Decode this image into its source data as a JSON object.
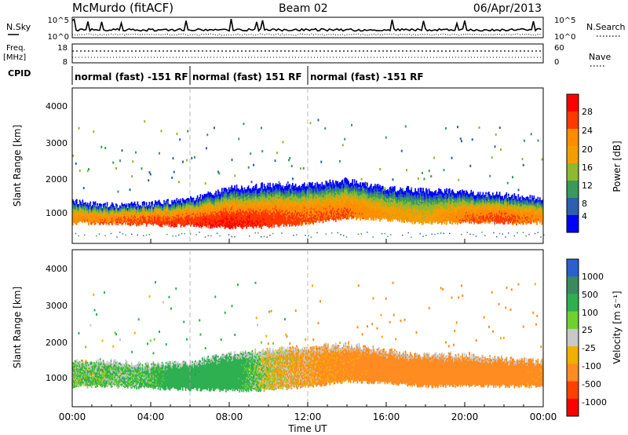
{
  "header": {
    "station": "McMurdo (fitACF)",
    "beam": "Beam 02",
    "date": "06/Apr/2013"
  },
  "noise_panel": {
    "left_label": "N.Sky",
    "right_label": "N.Search",
    "left_ticks": [
      "10^5",
      "10^0"
    ],
    "right_ticks": [
      "10^5",
      "10^0"
    ]
  },
  "freq_panel": {
    "left_label_top": "Freq.",
    "left_label_bottom": "[MHz]",
    "left_ticks": [
      "18",
      "8"
    ],
    "right_label": "Nave",
    "right_ticks": [
      "60",
      "0"
    ]
  },
  "cpid": {
    "label": "CPID",
    "segments": [
      {
        "text": "normal (fast) -151 RF",
        "start_hour": 0,
        "end_hour": 6
      },
      {
        "text": "normal (fast) 151 RF",
        "start_hour": 6,
        "end_hour": 12
      },
      {
        "text": "normal (fast) -151 RF",
        "start_hour": 12,
        "end_hour": 24
      }
    ]
  },
  "colorbars": {
    "power": {
      "label": "Power [dB]",
      "ticks": [
        "28",
        "24",
        "20",
        "16",
        "12",
        "8",
        "4"
      ],
      "colors": [
        "#ff0000",
        "#ff3800",
        "#ff8c00",
        "#f0a000",
        "#90b830",
        "#3a9a5a",
        "#2d5fb0",
        "#0000ff"
      ]
    },
    "velocity": {
      "label": "Velocity [m s⁻¹]",
      "ticks": [
        "1000",
        "500",
        "100",
        "25",
        "-25",
        "-100",
        "-500",
        "-1000"
      ],
      "colors": [
        "#2b5fd0",
        "#3a8a60",
        "#2eb050",
        "#70d030",
        "#c8c8c8",
        "#f0b000",
        "#ff8c20",
        "#ff4000",
        "#ff0000"
      ]
    }
  },
  "chart_data": [
    {
      "type": "heatmap",
      "title": "",
      "parameter": "Power [dB]",
      "ylabel": "Slant Range [km]",
      "xlabel": "",
      "xlim_hours": [
        0,
        24
      ],
      "ylim_km": [
        0,
        4600
      ],
      "yticks": [
        "1000",
        "2000",
        "3000",
        "4000"
      ],
      "scale": [
        0,
        30
      ],
      "band_profile": [
        {
          "hour": 0.0,
          "low": 600,
          "high": 1200,
          "peak": 22
        },
        {
          "hour": 2.0,
          "low": 600,
          "high": 1100,
          "peak": 24
        },
        {
          "hour": 4.0,
          "low": 550,
          "high": 1150,
          "peak": 26
        },
        {
          "hour": 6.0,
          "low": 520,
          "high": 1300,
          "peak": 27
        },
        {
          "hour": 8.0,
          "low": 480,
          "high": 1600,
          "peak": 29
        },
        {
          "hour": 10.0,
          "low": 500,
          "high": 1700,
          "peak": 27
        },
        {
          "hour": 12.0,
          "low": 600,
          "high": 1700,
          "peak": 25
        },
        {
          "hour": 14.0,
          "low": 750,
          "high": 1850,
          "peak": 24
        },
        {
          "hour": 16.0,
          "low": 700,
          "high": 1600,
          "peak": 20
        },
        {
          "hour": 18.0,
          "low": 600,
          "high": 1550,
          "peak": 18
        },
        {
          "hour": 20.0,
          "low": 620,
          "high": 1500,
          "peak": 24
        },
        {
          "hour": 22.0,
          "low": 600,
          "high": 1400,
          "peak": 26
        },
        {
          "hour": 24.0,
          "low": 600,
          "high": 1300,
          "peak": 22
        }
      ]
    },
    {
      "type": "heatmap",
      "title": "",
      "parameter": "Velocity [m s⁻¹]",
      "ylabel": "Slant Range [km]",
      "xlabel": "Time UT",
      "xlim_hours": [
        0,
        24
      ],
      "ylim_km": [
        0,
        4600
      ],
      "yticks": [
        "1000",
        "2000",
        "3000",
        "4000"
      ],
      "xticks": [
        "00:00",
        "04:00",
        "08:00",
        "12:00",
        "16:00",
        "20:00",
        "00:00"
      ],
      "band_profile": [
        {
          "hour": 0.0,
          "low": 600,
          "high": 1300,
          "velocity": 80
        },
        {
          "hour": 2.0,
          "low": 600,
          "high": 1300,
          "velocity": 90
        },
        {
          "hour": 4.0,
          "low": 550,
          "high": 1200,
          "velocity": 120
        },
        {
          "hour": 6.0,
          "low": 520,
          "high": 1300,
          "velocity": 400
        },
        {
          "hour": 8.0,
          "low": 480,
          "high": 1500,
          "velocity": 300
        },
        {
          "hour": 10.0,
          "low": 500,
          "high": 1650,
          "velocity": -30
        },
        {
          "hour": 12.0,
          "low": 600,
          "high": 1700,
          "velocity": -120
        },
        {
          "hour": 14.0,
          "low": 750,
          "high": 1800,
          "velocity": -200
        },
        {
          "hour": 16.0,
          "low": 700,
          "high": 1600,
          "velocity": -250
        },
        {
          "hour": 18.0,
          "low": 600,
          "high": 1500,
          "velocity": -300
        },
        {
          "hour": 20.0,
          "low": 620,
          "high": 1500,
          "velocity": -300
        },
        {
          "hour": 22.0,
          "low": 600,
          "high": 1400,
          "velocity": -250
        },
        {
          "hour": 24.0,
          "low": 600,
          "high": 1300,
          "velocity": -200
        }
      ]
    }
  ]
}
